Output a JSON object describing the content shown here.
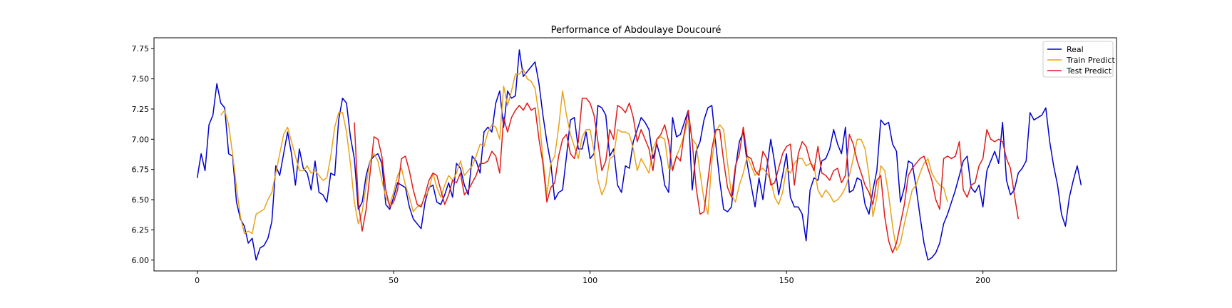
{
  "chart_data": {
    "type": "line",
    "title": "Performance of Abdoulaye Doucouré",
    "xlabel": "",
    "ylabel": "",
    "xlim": [
      -11,
      234
    ],
    "ylim": [
      5.91,
      7.84
    ],
    "x_ticks": [
      0,
      50,
      100,
      150,
      200
    ],
    "y_ticks": [
      6.0,
      6.25,
      6.5,
      6.75,
      7.0,
      7.25,
      7.5,
      7.75
    ],
    "y_tick_labels": [
      "6.00",
      "6.25",
      "6.50",
      "6.75",
      "7.00",
      "7.25",
      "7.50",
      "7.75"
    ],
    "grid": false,
    "legend_position": "top-right",
    "series": [
      {
        "name": "Real",
        "color": "#0000cd",
        "x_start": 0,
        "values": [
          6.68,
          6.88,
          6.74,
          7.12,
          7.2,
          7.46,
          7.3,
          7.26,
          6.88,
          6.86,
          6.48,
          6.34,
          6.28,
          6.14,
          6.18,
          6.0,
          6.1,
          6.12,
          6.18,
          6.32,
          6.78,
          6.7,
          6.88,
          7.06,
          6.88,
          6.62,
          6.92,
          6.76,
          6.72,
          6.58,
          6.82,
          6.56,
          6.54,
          6.48,
          6.72,
          6.7,
          7.16,
          7.34,
          7.3,
          7.02,
          6.84,
          6.42,
          6.48,
          6.7,
          6.82,
          6.86,
          6.88,
          6.8,
          6.46,
          6.42,
          6.52,
          6.64,
          6.62,
          6.6,
          6.44,
          6.34,
          6.3,
          6.26,
          6.48,
          6.6,
          6.62,
          6.48,
          6.46,
          6.54,
          6.64,
          6.52,
          6.8,
          6.76,
          6.62,
          6.54,
          6.86,
          6.82,
          6.72,
          7.06,
          7.1,
          7.06,
          7.3,
          7.4,
          7.1,
          7.4,
          7.34,
          7.36,
          7.74,
          7.52,
          7.56,
          7.6,
          7.64,
          7.46,
          7.2,
          6.98,
          6.8,
          6.5,
          6.56,
          6.58,
          6.86,
          7.16,
          7.18,
          6.92,
          6.92,
          7.06,
          6.84,
          6.88,
          7.28,
          7.26,
          7.2,
          6.86,
          6.92,
          6.62,
          6.56,
          6.78,
          6.76,
          6.98,
          7.08,
          7.18,
          7.14,
          7.08,
          6.84,
          6.96,
          6.84,
          6.62,
          6.56,
          7.18,
          7.02,
          7.04,
          7.14,
          7.24,
          6.58,
          6.9,
          6.98,
          7.16,
          7.26,
          7.28,
          6.96,
          6.66,
          6.42,
          6.4,
          6.44,
          6.76,
          6.98,
          7.06,
          6.8,
          6.62,
          6.44,
          6.68,
          6.5,
          6.76,
          7.0,
          6.8,
          6.54,
          6.7,
          6.88,
          6.52,
          6.44,
          6.44,
          6.38,
          6.16,
          6.58,
          6.68,
          6.66,
          6.82,
          6.84,
          6.92,
          7.08,
          6.96,
          6.88,
          7.1,
          6.56,
          6.58,
          6.68,
          6.66,
          6.46,
          6.38,
          6.58,
          6.74,
          7.16,
          7.12,
          7.14,
          6.96,
          6.9,
          6.48,
          6.6,
          6.82,
          6.8,
          6.6,
          6.36,
          6.14,
          6.0,
          6.02,
          6.06,
          6.14,
          6.3,
          6.38,
          6.48,
          6.58,
          6.7,
          6.82,
          6.86,
          6.6,
          6.56,
          6.62,
          6.44,
          6.74,
          6.82,
          6.9,
          6.8,
          7.14,
          6.66,
          6.54,
          6.58,
          6.72,
          6.76,
          6.82,
          7.22,
          7.16,
          7.18,
          7.2,
          7.26,
          6.98,
          6.78,
          6.62,
          6.38,
          6.28,
          6.52,
          6.66,
          6.78,
          6.62
        ]
      },
      {
        "name": "Train Predict",
        "color": "#e8a317",
        "segments": [
          {
            "x_start": 6,
            "values": [
              7.2,
              7.24,
              7.12,
              6.88,
              6.6,
              6.36,
              6.22,
              6.24,
              6.22,
              6.38,
              6.4,
              6.42,
              6.5,
              6.56,
              6.72,
              6.88,
              7.04,
              7.1,
              6.98,
              6.86,
              6.74,
              6.74,
              6.78,
              6.72,
              6.74,
              6.7,
              6.66,
              6.68,
              6.86,
              7.1,
              7.22,
              7.22,
              7.06,
              6.8,
              6.48,
              6.3,
              6.4,
              6.62,
              6.82,
              6.88,
              6.82,
              6.66,
              6.52,
              6.46,
              6.56,
              6.7,
              6.76,
              6.62,
              6.52,
              6.4,
              6.44,
              6.46
            ]
          },
          {
            "x_start": 58,
            "values": [
              6.52,
              6.58,
              6.72,
              6.6,
              6.52,
              6.62,
              6.7,
              6.66,
              6.72,
              6.82,
              6.7,
              6.74,
              6.78,
              6.86,
              6.96,
              6.94,
              7.06,
              7.12,
              7.1,
              7.0,
              7.44,
              7.28,
              7.4,
              7.54,
              7.54,
              7.58,
              7.5,
              7.48,
              7.42,
              7.2,
              6.84,
              6.54,
              6.8,
              6.86,
              7.1,
              7.4,
              7.2,
              7.04,
              6.94,
              6.84,
              7.02,
              7.08,
              7.08,
              6.9,
              6.66,
              6.54,
              6.62,
              6.84,
              6.86,
              7.08,
              7.06,
              7.06,
              7.04,
              6.92,
              6.74,
              6.84,
              6.78,
              6.72,
              6.92,
              7.0,
              7.02,
              7.0,
              6.76,
              6.76,
              6.86,
              6.94,
              7.04,
              7.16,
              7.0,
              6.96,
              6.72,
              6.5,
              6.38,
              6.82,
              7.06,
              7.12,
              7.08,
              6.8,
              6.54,
              6.48,
              6.62,
              6.72,
              6.86,
              6.78,
              6.7,
              6.74,
              6.76,
              6.72,
              6.66,
              6.52,
              6.46,
              6.56,
              6.76,
              6.72,
              6.8,
              6.84,
              6.84,
              6.78,
              6.8,
              6.78,
              6.58,
              6.52,
              6.58,
              6.54,
              6.48,
              6.5,
              6.54,
              6.6,
              6.7,
              6.84,
              7.0,
              7.0,
              6.92,
              6.7,
              6.36,
              6.52,
              6.78,
              6.74,
              6.54,
              6.28,
              6.08,
              6.14,
              6.3,
              6.44,
              6.58,
              6.62,
              6.72,
              6.8,
              6.84,
              6.72,
              6.66,
              6.62,
              6.6,
              6.48
            ]
          }
        ]
      },
      {
        "name": "Test Predict",
        "color": "#dd1c1a",
        "segments": [
          {
            "x_start": 40,
            "values": [
              7.14,
              6.48,
              6.24,
              6.42,
              6.72,
              7.02,
              7.0,
              6.86,
              6.58,
              6.44,
              6.48,
              6.58,
              6.84,
              6.86,
              6.74,
              6.58,
              6.46,
              6.44,
              6.54,
              6.66,
              6.72,
              6.7,
              6.58,
              6.46,
              6.54,
              6.66,
              6.64,
              6.72,
              6.54,
              6.58,
              6.64,
              6.7,
              6.8,
              6.8,
              6.82,
              6.9,
              6.86,
              6.72,
              7.18,
              7.06,
              7.18,
              7.24,
              7.28,
              7.24,
              7.3,
              7.24,
              7.26,
              7.0,
              6.8,
              6.48,
              6.6,
              6.64,
              6.86,
              7.0,
              7.04,
              6.88,
              6.84,
              6.98,
              7.34,
              7.34,
              7.3,
              7.2,
              6.98,
              6.74,
              6.82,
              7.08,
              7.0,
              7.28,
              7.26,
              7.22,
              7.3,
              7.18,
              6.98,
              7.08,
              7.0,
              6.92,
              6.74,
              7.0,
              7.04,
              7.12,
              6.98,
              6.74,
              6.86,
              6.82,
              7.06,
              7.24,
              6.98,
              6.6,
              6.38,
              6.4,
              6.66,
              6.92,
              7.08,
              7.08,
              6.82,
              6.6,
              6.52,
              6.78,
              6.88,
              7.1,
              6.86,
              6.84,
              6.74,
              6.7,
              6.9,
              6.84,
              6.62,
              6.64,
              6.76,
              6.88,
              6.94,
              6.96,
              6.62,
              6.88,
              6.98,
              6.94,
              6.82,
              6.74,
              6.94,
              6.72,
              6.7,
              6.66,
              6.74,
              6.76,
              6.64,
              6.7,
              7.04,
              6.96,
              6.82,
              6.72,
              6.62,
              6.56,
              6.46,
              6.66,
              6.7,
              6.36,
              6.16,
              6.06,
              6.14,
              6.3,
              6.46,
              6.7,
              6.76,
              6.8,
              6.84,
              6.86,
              6.76,
              6.66,
              6.5,
              6.42,
              6.84,
              6.86,
              6.84,
              6.86,
              6.98,
              6.58,
              6.52,
              6.62,
              6.64,
              6.78,
              6.84,
              7.08,
              7.0,
              6.98,
              7.0,
              6.98,
              6.84,
              6.76,
              6.54,
              6.34
            ]
          }
        ]
      }
    ]
  }
}
